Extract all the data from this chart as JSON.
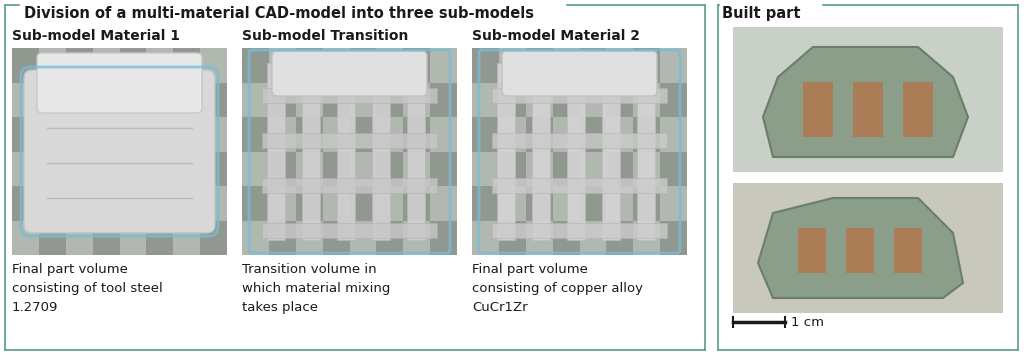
{
  "bg_color": "#ffffff",
  "border_color": "#5a9c8a",
  "title_left": "Division of a multi-material CAD-model into three sub-models",
  "title_right": "Built part",
  "submodel_labels": [
    "Sub-model Material 1",
    "Sub-model Transition",
    "Sub-model Material 2"
  ],
  "caption_texts": [
    "Final part volume\nconsisting of tool steel\n1.2709",
    "Transition volume in\nwhich material mixing\ntakes place",
    "Final part volume\nconsisting of copper alloy\nCuCr1Zr"
  ],
  "scale_label": "1 cm",
  "font_color": "#1a1a1a",
  "title_fontsize": 10.5,
  "submodel_fontsize": 10,
  "caption_fontsize": 9.5,
  "checker_dark": "#909890",
  "checker_light": "#b0b8b0",
  "model_fill": "#e0e0e0",
  "model_edge": "#aad0e0"
}
